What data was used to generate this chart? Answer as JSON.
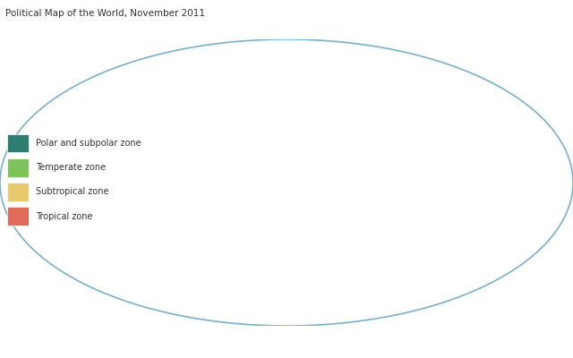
{
  "title": "Political Map of the World, November 2011",
  "title_fontsize": 7.5,
  "title_color": "#333333",
  "background_color": "#ffffff",
  "map_background": "#c8dff0",
  "ocean_color": "#c8dff0",
  "grid_color": "#a0c8e0",
  "border_color": "#7ab0cc",
  "legend_items": [
    {
      "label": "Polar and subpolar zone",
      "color": "#2e7d72"
    },
    {
      "label": "Temperate zone",
      "color": "#7dc35a"
    },
    {
      "label": "Subtropical zone",
      "color": "#e8c96e"
    },
    {
      "label": "Tropical zone",
      "color": "#e06b5a"
    }
  ],
  "legend_fontsize": 7,
  "figsize": [
    6.4,
    4.0
  ],
  "dpi": 100
}
